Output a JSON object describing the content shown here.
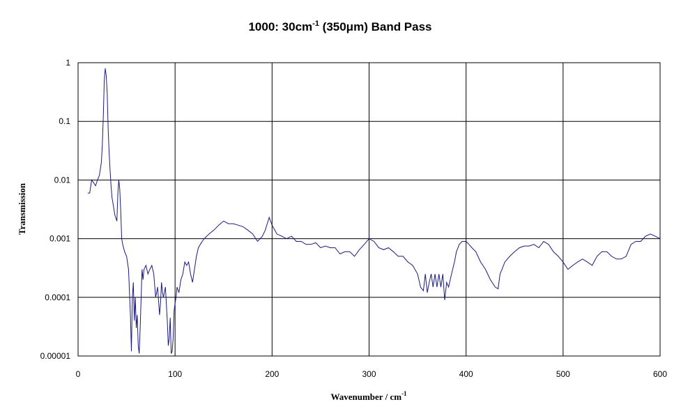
{
  "chart_data": {
    "type": "line",
    "title": {
      "pre": "1000: 30cm",
      "sup": "-1",
      "post": " (350μm) Band Pass"
    },
    "xlabel": {
      "text": "Wavenumber / cm",
      "sup": "-1"
    },
    "ylabel": "Transmission",
    "xlim": [
      0,
      600
    ],
    "ylim": [
      1e-05,
      1
    ],
    "yscale": "log",
    "grid": true,
    "x_ticks": [
      "0",
      "100",
      "200",
      "300",
      "400",
      "500",
      "600"
    ],
    "y_ticks": [
      "1",
      "0.1",
      "0.01",
      "0.001",
      "0.0001",
      "0.00001"
    ],
    "line_color": "#1a1a80",
    "series": [
      {
        "x": [
          10,
          12,
          14,
          16,
          18,
          20,
          22,
          24,
          25,
          26,
          27,
          28,
          29,
          30,
          31,
          32,
          33,
          34,
          35,
          36,
          38,
          40,
          41,
          42,
          43,
          44,
          45,
          46,
          48,
          50,
          52,
          54,
          55,
          56,
          57,
          58,
          59,
          60,
          61,
          62,
          63,
          64,
          65,
          66,
          67,
          68,
          70,
          72,
          74,
          76,
          78,
          80,
          82,
          84,
          85,
          86,
          87,
          88,
          90,
          92,
          93,
          94,
          95,
          96,
          97,
          98,
          99,
          100,
          101,
          102,
          104,
          106,
          108,
          110,
          112,
          114,
          116,
          118,
          120,
          122,
          124,
          126,
          128,
          130,
          135,
          140,
          145,
          150,
          155,
          160,
          165,
          170,
          175,
          180,
          185,
          190,
          193,
          195,
          197,
          200,
          205,
          210,
          215,
          220,
          225,
          230,
          235,
          240,
          245,
          250,
          255,
          260,
          265,
          270,
          275,
          280,
          285,
          290,
          295,
          300,
          305,
          310,
          315,
          320,
          325,
          330,
          335,
          340,
          345,
          350,
          353,
          356,
          358,
          360,
          362,
          364,
          366,
          368,
          370,
          372,
          374,
          376,
          378,
          380,
          382,
          385,
          388,
          390,
          393,
          396,
          400,
          403,
          406,
          410,
          415,
          420,
          425,
          430,
          433,
          435,
          437,
          440,
          445,
          450,
          455,
          460,
          465,
          470,
          475,
          480,
          485,
          490,
          495,
          500,
          505,
          510,
          515,
          520,
          525,
          530,
          535,
          540,
          545,
          550,
          555,
          560,
          565,
          570,
          575,
          580,
          585,
          590,
          595,
          600
        ],
        "values": [
          0.006,
          0.006,
          0.01,
          0.009,
          0.008,
          0.01,
          0.012,
          0.02,
          0.04,
          0.12,
          0.5,
          0.8,
          0.6,
          0.3,
          0.08,
          0.03,
          0.015,
          0.008,
          0.005,
          0.004,
          0.0025,
          0.002,
          0.006,
          0.01,
          0.007,
          0.003,
          0.001,
          0.0008,
          0.0006,
          0.0005,
          0.0003,
          5e-05,
          1.2e-05,
          0.0001,
          0.00018,
          4e-05,
          0.0001,
          3e-05,
          5e-05,
          1.5e-05,
          1.1e-05,
          3e-05,
          0.0001,
          0.0003,
          0.0002,
          0.0003,
          0.00035,
          0.00025,
          0.0003,
          0.00035,
          0.00025,
          0.0001,
          0.00015,
          5e-05,
          8e-05,
          0.00018,
          0.00012,
          0.0001,
          0.00015,
          4e-05,
          1.5e-05,
          2e-05,
          4.5e-05,
          1.1e-05,
          1.2e-05,
          2e-05,
          6e-05,
          8e-05,
          0.0001,
          0.00015,
          0.00012,
          0.0002,
          0.00025,
          0.0004,
          0.00035,
          0.0004,
          0.00025,
          0.00018,
          0.0003,
          0.0005,
          0.0007,
          0.0008,
          0.0009,
          0.001,
          0.0012,
          0.0014,
          0.0017,
          0.002,
          0.0018,
          0.0018,
          0.0017,
          0.0016,
          0.0014,
          0.0012,
          0.0009,
          0.0011,
          0.0014,
          0.0018,
          0.0023,
          0.0017,
          0.0012,
          0.0011,
          0.001,
          0.0011,
          0.0009,
          0.0009,
          0.0008,
          0.0008,
          0.00085,
          0.0007,
          0.00075,
          0.0007,
          0.0007,
          0.00055,
          0.0006,
          0.0006,
          0.0005,
          0.00065,
          0.0008,
          0.001,
          0.0009,
          0.0007,
          0.00065,
          0.0007,
          0.0006,
          0.0005,
          0.0005,
          0.0004,
          0.00035,
          0.00025,
          0.00015,
          0.00013,
          0.00025,
          0.00012,
          0.00018,
          0.00025,
          0.00015,
          0.00025,
          0.00015,
          0.00025,
          0.00015,
          0.00025,
          9e-05,
          0.00018,
          0.00015,
          0.00025,
          0.0004,
          0.0006,
          0.0008,
          0.0009,
          0.0009,
          0.0008,
          0.0007,
          0.0006,
          0.0004,
          0.0003,
          0.0002,
          0.00015,
          0.00014,
          0.00025,
          0.0003,
          0.0004,
          0.0005,
          0.0006,
          0.0007,
          0.00075,
          0.00075,
          0.0008,
          0.0007,
          0.0009,
          0.0008,
          0.0006,
          0.0005,
          0.0004,
          0.0003,
          0.00035,
          0.0004,
          0.00045,
          0.0004,
          0.00035,
          0.0005,
          0.0006,
          0.0006,
          0.0005,
          0.00045,
          0.00045,
          0.0005,
          0.0008,
          0.0009,
          0.0009,
          0.0011,
          0.0012,
          0.0011,
          0.001
        ]
      }
    ]
  }
}
